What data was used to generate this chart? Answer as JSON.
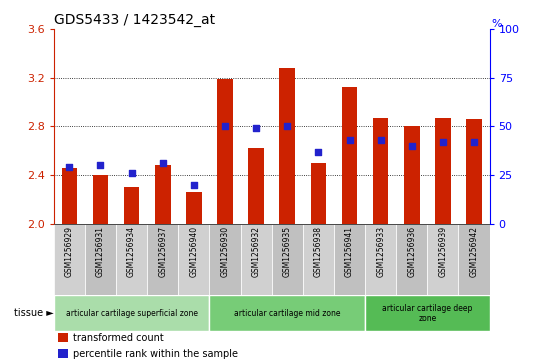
{
  "title": "GDS5433 / 1423542_at",
  "samples": [
    "GSM1256929",
    "GSM1256931",
    "GSM1256934",
    "GSM1256937",
    "GSM1256940",
    "GSM1256930",
    "GSM1256932",
    "GSM1256935",
    "GSM1256938",
    "GSM1256941",
    "GSM1256933",
    "GSM1256936",
    "GSM1256939",
    "GSM1256942"
  ],
  "transformed_count": [
    2.46,
    2.4,
    2.3,
    2.48,
    2.26,
    3.19,
    2.62,
    3.28,
    2.5,
    3.12,
    2.87,
    2.8,
    2.87,
    2.86
  ],
  "percentile_rank": [
    29,
    30,
    26,
    31,
    20,
    50,
    49,
    50,
    37,
    43,
    43,
    40,
    42,
    42
  ],
  "y_min": 2.0,
  "y_max": 3.6,
  "y_ticks": [
    2.0,
    2.4,
    2.8,
    3.2,
    3.6
  ],
  "y2_ticks": [
    0,
    25,
    50,
    75,
    100
  ],
  "bar_color": "#cc2200",
  "dot_color": "#2222cc",
  "tissue_groups": [
    {
      "label": "articular cartilage superficial zone",
      "start": 0,
      "end": 5,
      "color": "#aaddaa"
    },
    {
      "label": "articular cartilage mid zone",
      "start": 5,
      "end": 10,
      "color": "#77cc77"
    },
    {
      "label": "articular cartilage deep\nzone",
      "start": 10,
      "end": 14,
      "color": "#55bb55"
    }
  ],
  "tick_col_colors": [
    "#d0d0d0",
    "#c0c0c0"
  ],
  "tissue_label": "tissue ►",
  "legend_items": [
    {
      "label": "transformed count",
      "color": "#cc2200"
    },
    {
      "label": "percentile rank within the sample",
      "color": "#2222cc"
    }
  ]
}
